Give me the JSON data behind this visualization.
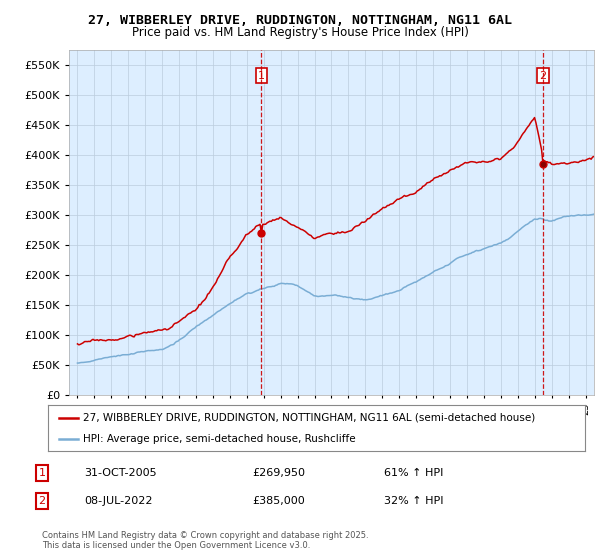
{
  "title": "27, WIBBERLEY DRIVE, RUDDINGTON, NOTTINGHAM, NG11 6AL",
  "subtitle": "Price paid vs. HM Land Registry's House Price Index (HPI)",
  "legend_line1": "27, WIBBERLEY DRIVE, RUDDINGTON, NOTTINGHAM, NG11 6AL (semi-detached house)",
  "legend_line2": "HPI: Average price, semi-detached house, Rushcliffe",
  "transaction1_date": "31-OCT-2005",
  "transaction1_price": "£269,950",
  "transaction1_hpi": "61% ↑ HPI",
  "transaction2_date": "08-JUL-2022",
  "transaction2_price": "£385,000",
  "transaction2_hpi": "32% ↑ HPI",
  "footer": "Contains HM Land Registry data © Crown copyright and database right 2025.\nThis data is licensed under the Open Government Licence v3.0.",
  "red_color": "#cc0000",
  "blue_color": "#7aadd4",
  "vline_color": "#cc0000",
  "plot_bg_color": "#ddeeff",
  "background_color": "#ffffff",
  "grid_color": "#bbccdd",
  "ylim": [
    0,
    575000
  ],
  "yticks": [
    0,
    50000,
    100000,
    150000,
    200000,
    250000,
    300000,
    350000,
    400000,
    450000,
    500000,
    550000
  ],
  "t1_year": 2005.83,
  "t2_year": 2022.53,
  "t1_price": 269950,
  "t2_price": 385000
}
